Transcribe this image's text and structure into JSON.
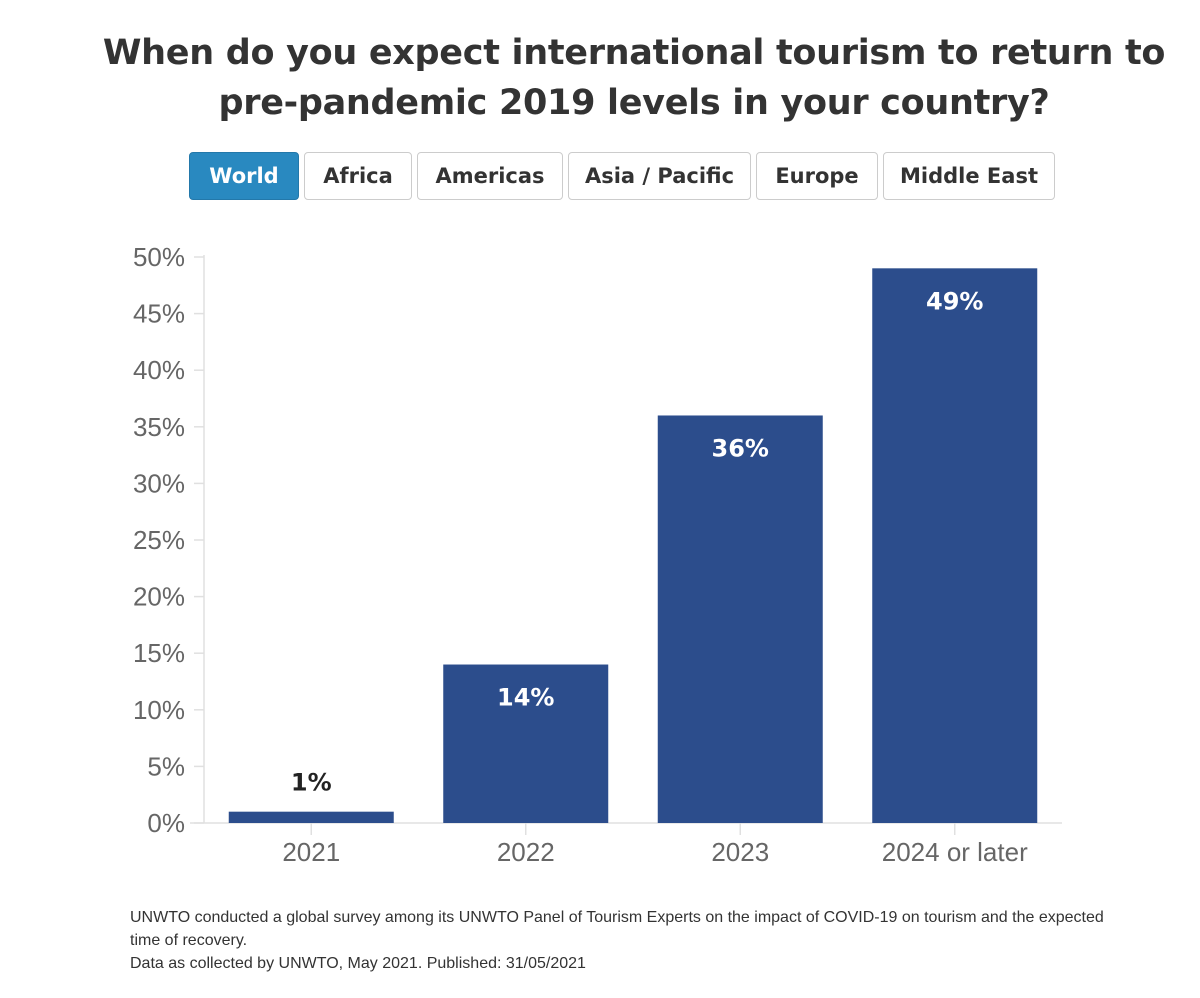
{
  "title": {
    "line1": "When do you expect international tourism to return to",
    "line2": "pre-pandemic 2019 levels in your country?"
  },
  "tabs": [
    {
      "label": "World",
      "active": true
    },
    {
      "label": "Africa",
      "active": false
    },
    {
      "label": "Americas",
      "active": false
    },
    {
      "label": "Asia / Pacific",
      "active": false
    },
    {
      "label": "Europe",
      "active": false
    },
    {
      "label": "Middle East",
      "active": false
    }
  ],
  "chart_data": {
    "type": "bar",
    "categories": [
      "2021",
      "2022",
      "2023",
      "2024 or later"
    ],
    "values": [
      1,
      14,
      36,
      49
    ],
    "data_labels": [
      "1%",
      "14%",
      "36%",
      "49%"
    ],
    "ylim": [
      0,
      50
    ],
    "yticks": [
      "0%",
      "5%",
      "10%",
      "15%",
      "20%",
      "25%",
      "30%",
      "35%",
      "40%",
      "45%",
      "50%"
    ],
    "xlabel": "",
    "ylabel": "",
    "bar_color": "#2c4d8c",
    "grid": false
  },
  "footnote": {
    "line1": "UNWTO conducted a global survey among its UNWTO Panel of Tourism Experts on the impact of COVID-19 on tourism and the expected time of recovery.",
    "line2": "Data as collected by UNWTO, May 2021. Published: 31/05/2021"
  },
  "colors": {
    "active_tab": "#2989c0",
    "bar": "#2c4d8c"
  }
}
